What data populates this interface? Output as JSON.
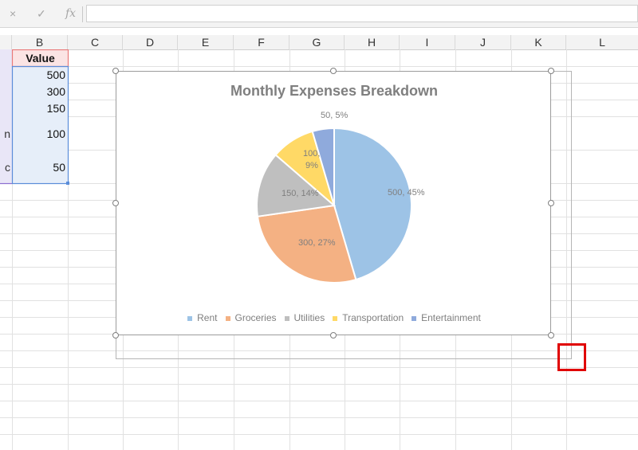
{
  "formula_bar": {
    "cancel_icon": "×",
    "enter_icon": "✓",
    "fx_label": "fx",
    "value": ""
  },
  "columns": [
    "B",
    "C",
    "D",
    "E",
    "F",
    "G",
    "H",
    "I",
    "J",
    "K",
    "L"
  ],
  "table": {
    "header": "Value",
    "values": [
      "500",
      "300",
      "150",
      "100",
      "50"
    ],
    "row_label_fragments": [
      "n",
      "c"
    ]
  },
  "chart": {
    "title": "Monthly Expenses Breakdown",
    "legend_position": "bottom"
  },
  "chart_data": {
    "type": "pie",
    "title": "Monthly Expenses Breakdown",
    "categories": [
      "Rent",
      "Groceries",
      "Utilities",
      "Transportation",
      "Entertainment"
    ],
    "values": [
      500,
      300,
      150,
      100,
      50
    ],
    "labels": [
      "500, 45%",
      "300, 27%",
      "150, 14%",
      "100, 9%",
      "50, 5%"
    ],
    "colors": [
      "#9dc3e6",
      "#f4b183",
      "#bfbfbf",
      "#ffd966",
      "#8faadc"
    ],
    "legend_position": "bottom"
  }
}
